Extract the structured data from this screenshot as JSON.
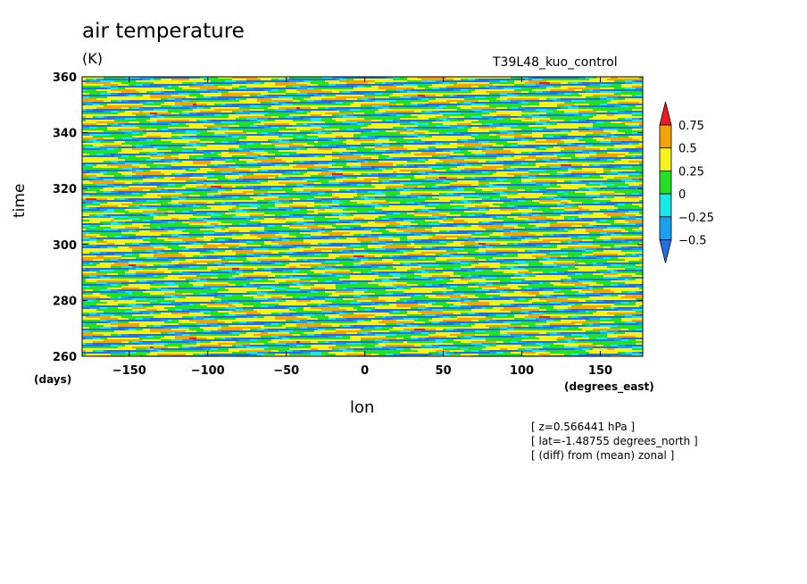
{
  "header": {
    "title": "air temperature",
    "units": "(K)",
    "run_name": "T39L48_kuo_control"
  },
  "axes": {
    "ylabel": "time",
    "yunit": "(days)",
    "xlabel": "lon",
    "xunit": "(degrees_east)"
  },
  "notes": [
    "[ z=0.566441 hPa ]",
    "[ lat=-1.48755 degrees_north ]",
    "[ (diff) from (mean) zonal ]"
  ],
  "chart_data": {
    "type": "heatmap",
    "description_type": "filled contour (Hovmoller)",
    "x": {
      "range": [
        -180,
        177
      ],
      "ticks": [
        -150,
        -100,
        -50,
        0,
        50,
        100,
        150
      ],
      "tick_labels": [
        "−150",
        "−100",
        "−50",
        "0",
        "50",
        "100",
        "150"
      ]
    },
    "y": {
      "range": [
        260,
        360
      ],
      "ticks": [
        260,
        280,
        300,
        320,
        340,
        360
      ],
      "tick_labels": [
        "260",
        "280",
        "300",
        "320",
        "340",
        "360"
      ]
    },
    "contour_levels": [
      -0.5,
      -0.25,
      0,
      0.25,
      0.5,
      0.75
    ],
    "level_labels": [
      "−0.5",
      "−0.25",
      "0",
      "0.25",
      "0.5",
      "0.75"
    ],
    "colors": [
      "#1f6fe8",
      "#1aa0f0",
      "#16eaea",
      "#22e022",
      "#f4f41c",
      "#f4a300",
      "#ee1c1c"
    ],
    "pattern": "westward-tilted diagonal stripes; phase lines rise about 8 days across 360 degrees longitude, repeating every ~2.7 days"
  }
}
